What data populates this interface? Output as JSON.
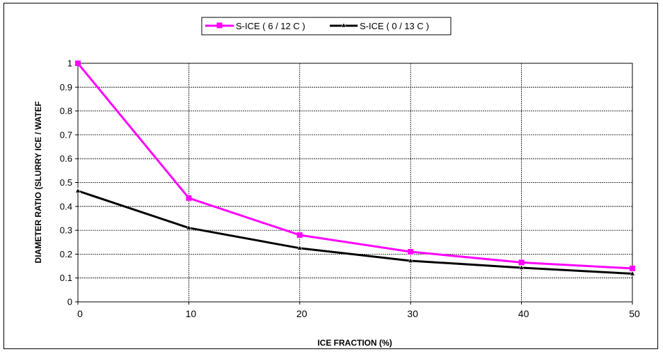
{
  "chart_data": {
    "type": "line",
    "title": "",
    "xlabel": "ICE FRACTION (%)",
    "ylabel": "DIAMETER RATIO (SLURRY ICE / WATEF",
    "x": [
      0,
      10,
      20,
      30,
      40,
      50
    ],
    "x_ticks": [
      "0",
      "10",
      "20",
      "30",
      "40",
      "50"
    ],
    "y_ticks": [
      "0",
      "0.1",
      "0.2",
      "0.3",
      "0.4",
      "0.5",
      "0.6",
      "0.7",
      "0.8",
      "0.9",
      "1"
    ],
    "xlim": [
      0,
      50
    ],
    "ylim": [
      0,
      1
    ],
    "grid": true,
    "legend_position": "top-center",
    "series": [
      {
        "name": "S-ICE ( 6 / 12 C )",
        "values": [
          1.0,
          0.435,
          0.28,
          0.21,
          0.165,
          0.14
        ],
        "color": "#ff00ff",
        "marker": "square"
      },
      {
        "name": "S-ICE ( 0 / 13 C )",
        "values": [
          0.465,
          0.31,
          0.225,
          0.172,
          0.143,
          0.118
        ],
        "color": "#000000",
        "marker": "triangle"
      }
    ]
  }
}
